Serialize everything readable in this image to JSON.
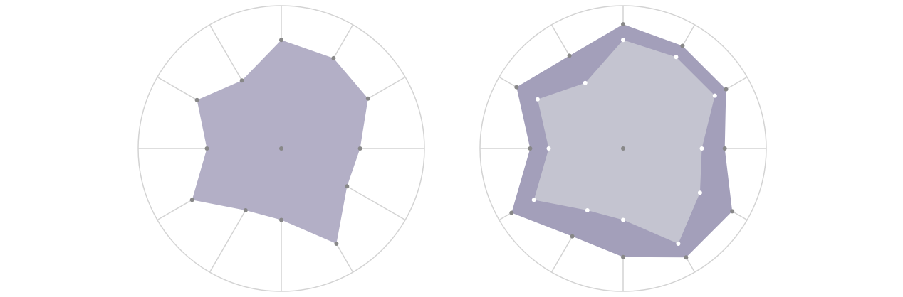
{
  "colors": {
    "background": "#ffffff",
    "ring": "#d3d3d3",
    "spoke": "#d3d3d3",
    "single_fill": "#b3afc6",
    "outer_fill": "#a39fba",
    "inner_fill": "#c4c4d0",
    "dot_dark": "#888888",
    "dot_light": "#ffffff"
  },
  "chart_data": [
    {
      "type": "radar",
      "axes": 12,
      "rmax": 1,
      "grid": true,
      "series": [
        {
          "values": [
            0.76,
            0.73,
            0.7,
            0.55,
            0.53,
            0.77,
            0.5,
            0.5,
            0.72,
            0.52,
            0.68,
            0.55
          ],
          "fill": "#b3afc6",
          "dots": "#888888"
        }
      ]
    },
    {
      "type": "radar",
      "axes": 12,
      "rmax": 1,
      "grid": true,
      "series": [
        {
          "values": [
            0.87,
            0.83,
            0.83,
            0.71,
            0.88,
            0.88,
            0.76,
            0.71,
            0.9,
            0.65,
            0.86,
            0.75
          ],
          "fill": "#a39fba",
          "dots": "#888888"
        },
        {
          "values": [
            0.76,
            0.74,
            0.74,
            0.55,
            0.62,
            0.77,
            0.5,
            0.5,
            0.72,
            0.52,
            0.69,
            0.53
          ],
          "fill": "#c4c4d0",
          "dots": "#ffffff"
        }
      ]
    }
  ]
}
